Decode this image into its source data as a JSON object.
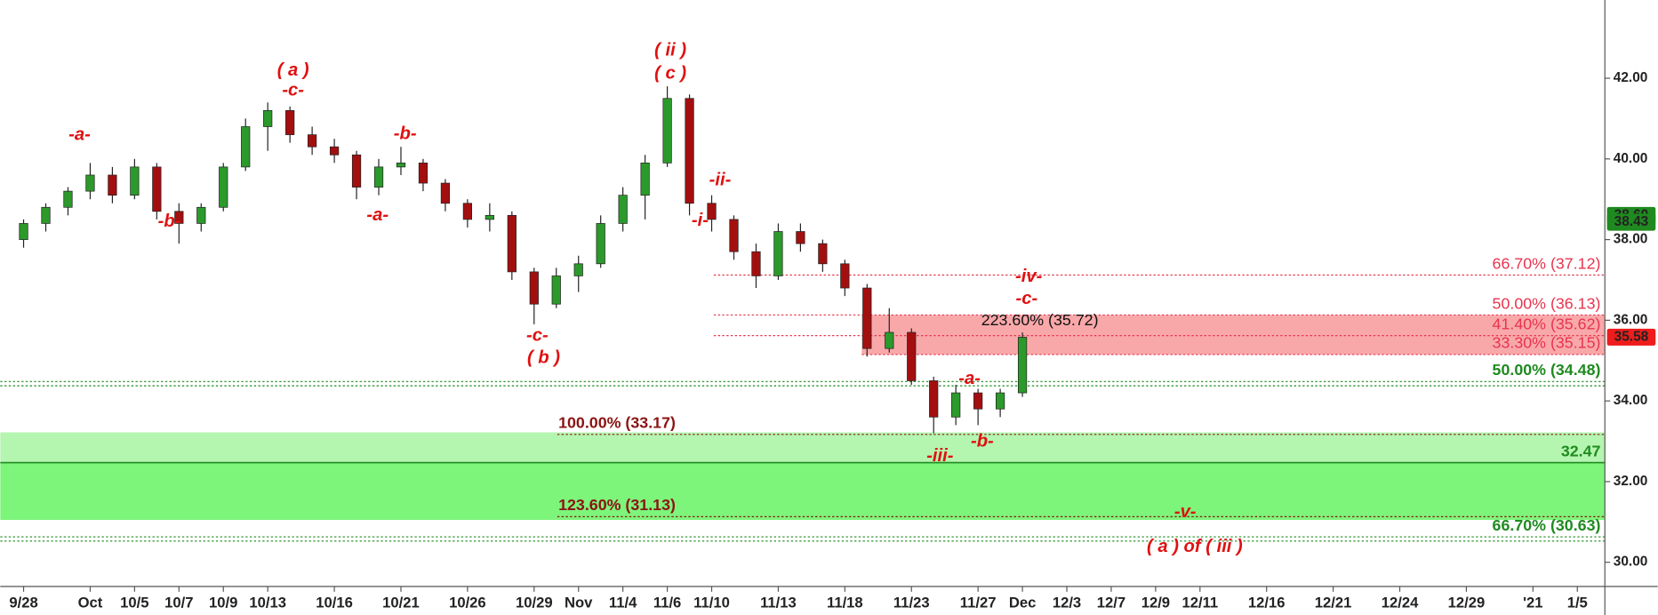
{
  "chart_data": {
    "type": "candlestick",
    "x": [
      0,
      1,
      2,
      3,
      4,
      5,
      6,
      7,
      8,
      9,
      10,
      11,
      12,
      13,
      14,
      15,
      16,
      17,
      18,
      19,
      20,
      21,
      22,
      23,
      24,
      25,
      26,
      27,
      28,
      29,
      30,
      31,
      32,
      33,
      34,
      35,
      36,
      37,
      38,
      39,
      40,
      41,
      42,
      43,
      44,
      45
    ],
    "open": [
      38.0,
      38.4,
      38.8,
      39.2,
      39.6,
      39.1,
      39.8,
      38.7,
      38.4,
      38.8,
      39.8,
      40.8,
      41.2,
      40.6,
      40.3,
      40.1,
      39.3,
      39.8,
      39.9,
      39.4,
      38.9,
      38.5,
      38.6,
      37.2,
      36.4,
      37.1,
      37.4,
      38.4,
      39.1,
      39.9,
      41.5,
      38.9,
      38.5,
      37.7,
      37.1,
      38.2,
      37.9,
      37.4,
      36.8,
      35.3,
      35.7,
      34.5,
      33.6,
      34.2,
      33.8,
      34.2
    ],
    "high": [
      38.5,
      38.9,
      39.3,
      39.9,
      39.8,
      40.0,
      39.9,
      38.9,
      38.9,
      39.9,
      41.0,
      41.4,
      41.3,
      40.8,
      40.5,
      40.2,
      40.0,
      40.3,
      40.0,
      39.5,
      39.0,
      38.9,
      38.7,
      37.3,
      37.3,
      37.6,
      38.6,
      39.3,
      40.1,
      41.8,
      41.6,
      39.1,
      38.6,
      37.9,
      38.4,
      38.4,
      38.0,
      37.5,
      36.9,
      36.3,
      35.8,
      34.6,
      34.4,
      34.3,
      34.3,
      35.7
    ],
    "low": [
      37.8,
      38.2,
      38.6,
      39.0,
      38.9,
      39.0,
      38.5,
      37.9,
      38.2,
      38.7,
      39.7,
      40.2,
      40.4,
      40.1,
      39.9,
      39.0,
      39.1,
      39.6,
      39.2,
      38.7,
      38.3,
      38.2,
      37.0,
      35.9,
      36.3,
      36.7,
      37.3,
      38.2,
      38.5,
      39.8,
      38.6,
      38.2,
      37.5,
      36.8,
      37.0,
      37.7,
      37.2,
      36.6,
      35.1,
      35.2,
      34.4,
      33.2,
      33.4,
      33.4,
      33.6,
      34.1
    ],
    "close": [
      38.4,
      38.8,
      39.2,
      39.6,
      39.1,
      39.8,
      38.7,
      38.4,
      38.8,
      39.8,
      40.8,
      41.2,
      40.6,
      40.3,
      40.1,
      39.3,
      39.8,
      39.9,
      39.4,
      38.9,
      38.5,
      38.6,
      37.2,
      36.4,
      37.1,
      37.4,
      38.4,
      39.1,
      39.9,
      41.5,
      38.9,
      38.5,
      37.7,
      37.1,
      38.2,
      37.9,
      37.4,
      36.8,
      35.3,
      35.7,
      34.5,
      33.6,
      34.2,
      33.8,
      34.2,
      35.58
    ],
    "up_color": "#2b9a2b",
    "down_color": "#a30f0f",
    "xlim": [
      -1.05,
      71.24
    ],
    "xticks": [
      {
        "value": 0,
        "label": "9/28"
      },
      {
        "value": 3,
        "label": "Oct"
      },
      {
        "value": 5,
        "label": "10/5"
      },
      {
        "value": 7,
        "label": "10/7"
      },
      {
        "value": 9,
        "label": "10/9"
      },
      {
        "value": 11,
        "label": "10/13"
      },
      {
        "value": 14,
        "label": "10/16"
      },
      {
        "value": 17,
        "label": "10/21"
      },
      {
        "value": 20,
        "label": "10/26"
      },
      {
        "value": 23,
        "label": "10/29"
      },
      {
        "value": 25,
        "label": "Nov"
      },
      {
        "value": 27,
        "label": "11/4"
      },
      {
        "value": 29,
        "label": "11/6"
      },
      {
        "value": 31,
        "label": "11/10"
      },
      {
        "value": 34,
        "label": "11/13"
      },
      {
        "value": 37,
        "label": "11/18"
      },
      {
        "value": 40,
        "label": "11/23"
      },
      {
        "value": 43,
        "label": "11/27"
      },
      {
        "value": 45,
        "label": "Dec"
      },
      {
        "value": 47,
        "label": "12/3"
      },
      {
        "value": 49,
        "label": "12/7"
      },
      {
        "value": 51,
        "label": "12/9"
      },
      {
        "value": 53,
        "label": "12/11"
      },
      {
        "value": 56,
        "label": "12/16"
      },
      {
        "value": 59,
        "label": "12/21"
      },
      {
        "value": 62,
        "label": "12/24"
      },
      {
        "value": 65,
        "label": "12/29"
      },
      {
        "value": 68,
        "label": "'21"
      },
      {
        "value": 70,
        "label": "1/5"
      }
    ],
    "ylim": [
      29.4,
      43.94
    ],
    "yticks": [
      {
        "value": 30,
        "label": "30.00"
      },
      {
        "value": 32,
        "label": "32.00"
      },
      {
        "value": 34,
        "label": "34.00"
      },
      {
        "value": 36,
        "label": "36.00"
      },
      {
        "value": 38,
        "label": "38.00"
      },
      {
        "value": 40,
        "label": "40.00"
      },
      {
        "value": 42,
        "label": "42.00"
      }
    ],
    "zones": [
      {
        "from": 35.15,
        "to": 36.13,
        "color": "#f9a8aa"
      },
      {
        "from": 32.47,
        "to": 33.22,
        "color": "#b4f5b0"
      },
      {
        "from": 31.05,
        "to": 32.47,
        "color": "#7df47a"
      }
    ],
    "levels": [
      {
        "label": "66.70% (37.12)",
        "value": 37.12,
        "color": "#e8344e"
      },
      {
        "label": "50.00% (36.13)",
        "value": 36.13,
        "color": "#e8344e"
      },
      {
        "label": "41.40% (35.62)",
        "value": 35.62,
        "color": "#e8344e"
      },
      {
        "label": "33.30% (35.15)",
        "value": 35.15,
        "color": "#e8344e"
      },
      {
        "label": "223.60% (35.72)",
        "value": 35.72,
        "color": "#111111"
      },
      {
        "label": "50.00% (34.48)",
        "value": 34.48,
        "color": "#1f8a1f"
      },
      {
        "label": "100.00% (33.17)",
        "value": 33.17,
        "color": "#8b1414"
      },
      {
        "label": "123.60% (31.13)",
        "value": 31.13,
        "color": "#8b1414"
      },
      {
        "label": "32.47",
        "value": 32.47,
        "color": "#1f8a1f"
      },
      {
        "label": "66.70% (30.63)",
        "value": 30.63,
        "color": "#1f8a1f"
      }
    ],
    "price_labels": [
      {
        "value": 38.6,
        "label": "38.60",
        "color": "#1f8a1f"
      },
      {
        "value": 38.43,
        "label": "38.43",
        "color": "#1f8a1f"
      },
      {
        "value": 35.58,
        "label": "35.58",
        "color": "#ee1c1c"
      }
    ],
    "annotations": [
      "( a )",
      "-c-",
      "-a-",
      "-b-",
      "-b-",
      "-a-",
      "( ii )",
      "( c )",
      "-c-",
      "( b )",
      "-ii-",
      "-i-",
      "-iv-",
      "-c-",
      "-a-",
      "-iii-",
      "-b-",
      "-v-",
      "( a ) of ( iii )"
    ]
  }
}
